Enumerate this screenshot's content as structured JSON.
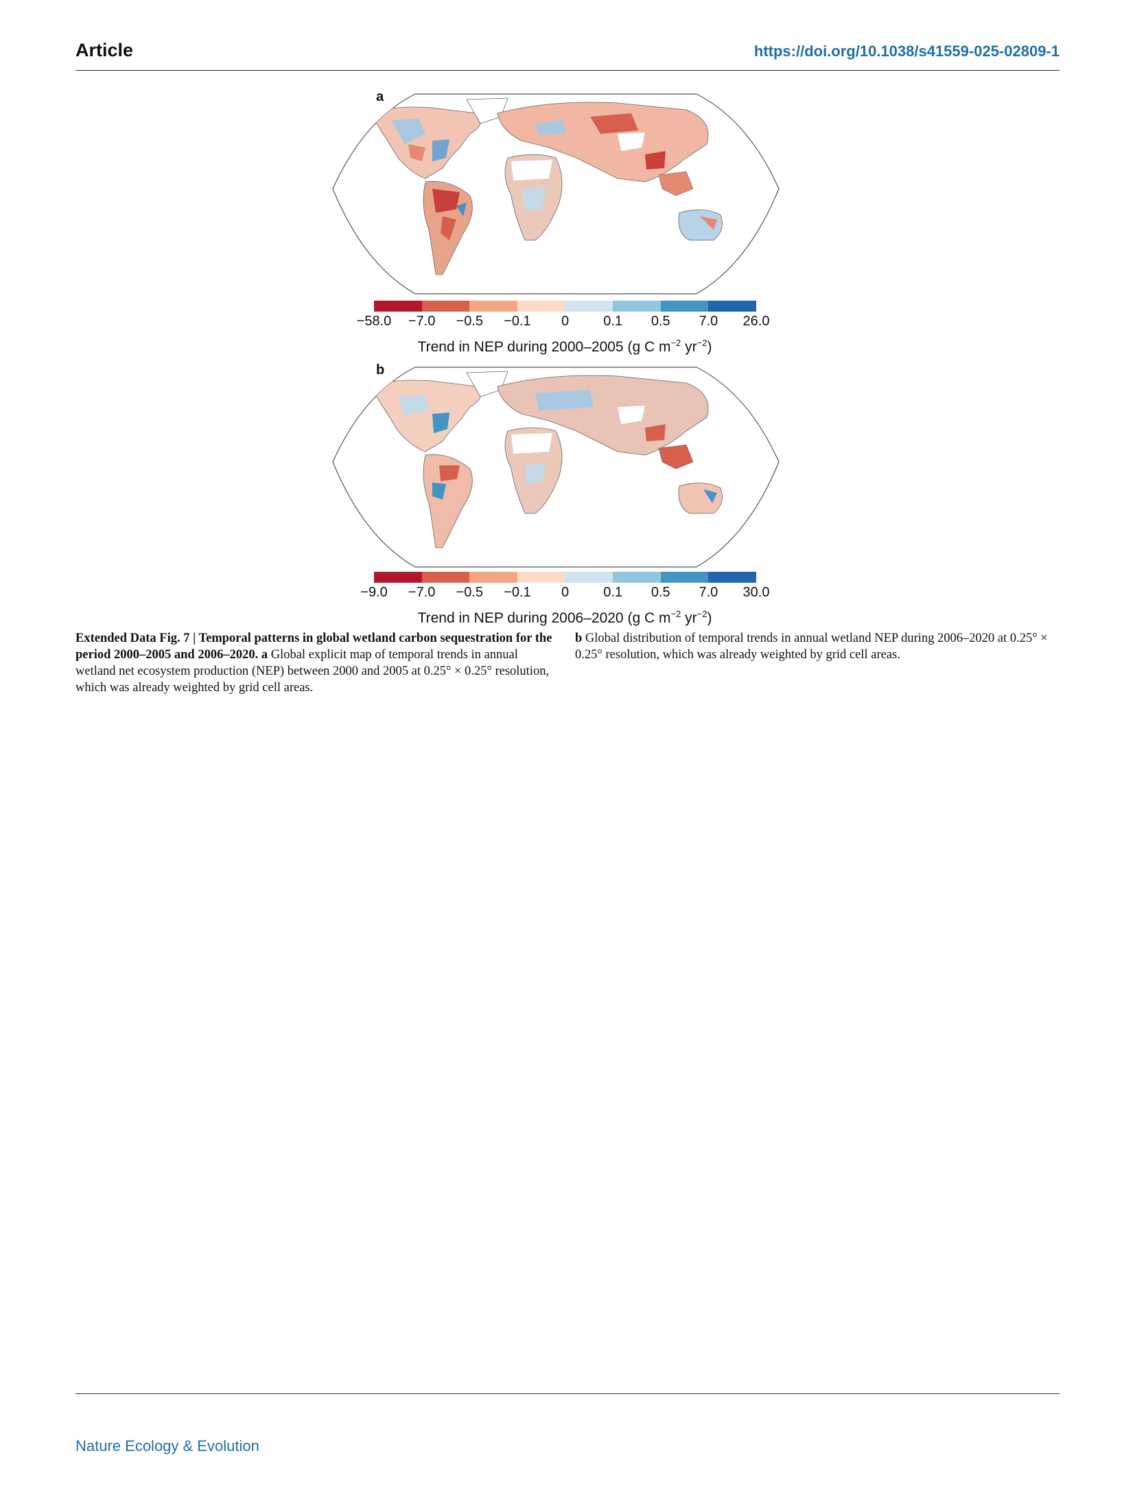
{
  "header": {
    "section": "Article",
    "doi": "https://doi.org/10.1038/s41559-025-02809-1"
  },
  "footer": {
    "journal": "Nature Ecology & Evolution"
  },
  "colors": {
    "colorbar": [
      "#b2182b",
      "#d6604d",
      "#f4a582",
      "#fddbc7",
      "#d1e5f0",
      "#92c5de",
      "#4393c3",
      "#2166ac"
    ]
  },
  "panels": [
    {
      "letter": "a",
      "ticks": [
        "−58.0",
        "−7.0",
        "−0.5",
        "−0.1",
        "0",
        "0.1",
        "0.5",
        "7.0",
        "26.0"
      ],
      "label_main": "Trend in NEP during 2000–2005 (g C m",
      "label_sup1": "−2",
      "label_mid": " yr",
      "label_sup2": "−2",
      "label_end": ")"
    },
    {
      "letter": "b",
      "ticks": [
        "−9.0",
        "−7.0",
        "−0.5",
        "−0.1",
        "0",
        "0.1",
        "0.5",
        "7.0",
        "30.0"
      ],
      "label_main": "Trend in NEP during 2006–2020 (g C m",
      "label_sup1": "−2",
      "label_mid": " yr",
      "label_sup2": "−2",
      "label_end": ")"
    }
  ],
  "caption": {
    "fig_label": "Extended Data Fig. 7 | Temporal patterns in global wetland carbon sequestration for the period 2000–2005 and 2006–2020.",
    "a_letter": "a",
    "a_text": "Global explicit map of temporal trends in annual wetland net ecosystem production (NEP) between 2000 and 2005 at 0.25° × 0.25° resolution, which was already weighted by grid cell areas.",
    "b_letter": "b",
    "b_text": "Global distribution of temporal trends in annual wetland NEP during 2006–2020 at 0.25° × 0.25° resolution, which was already weighted by grid cell areas."
  }
}
